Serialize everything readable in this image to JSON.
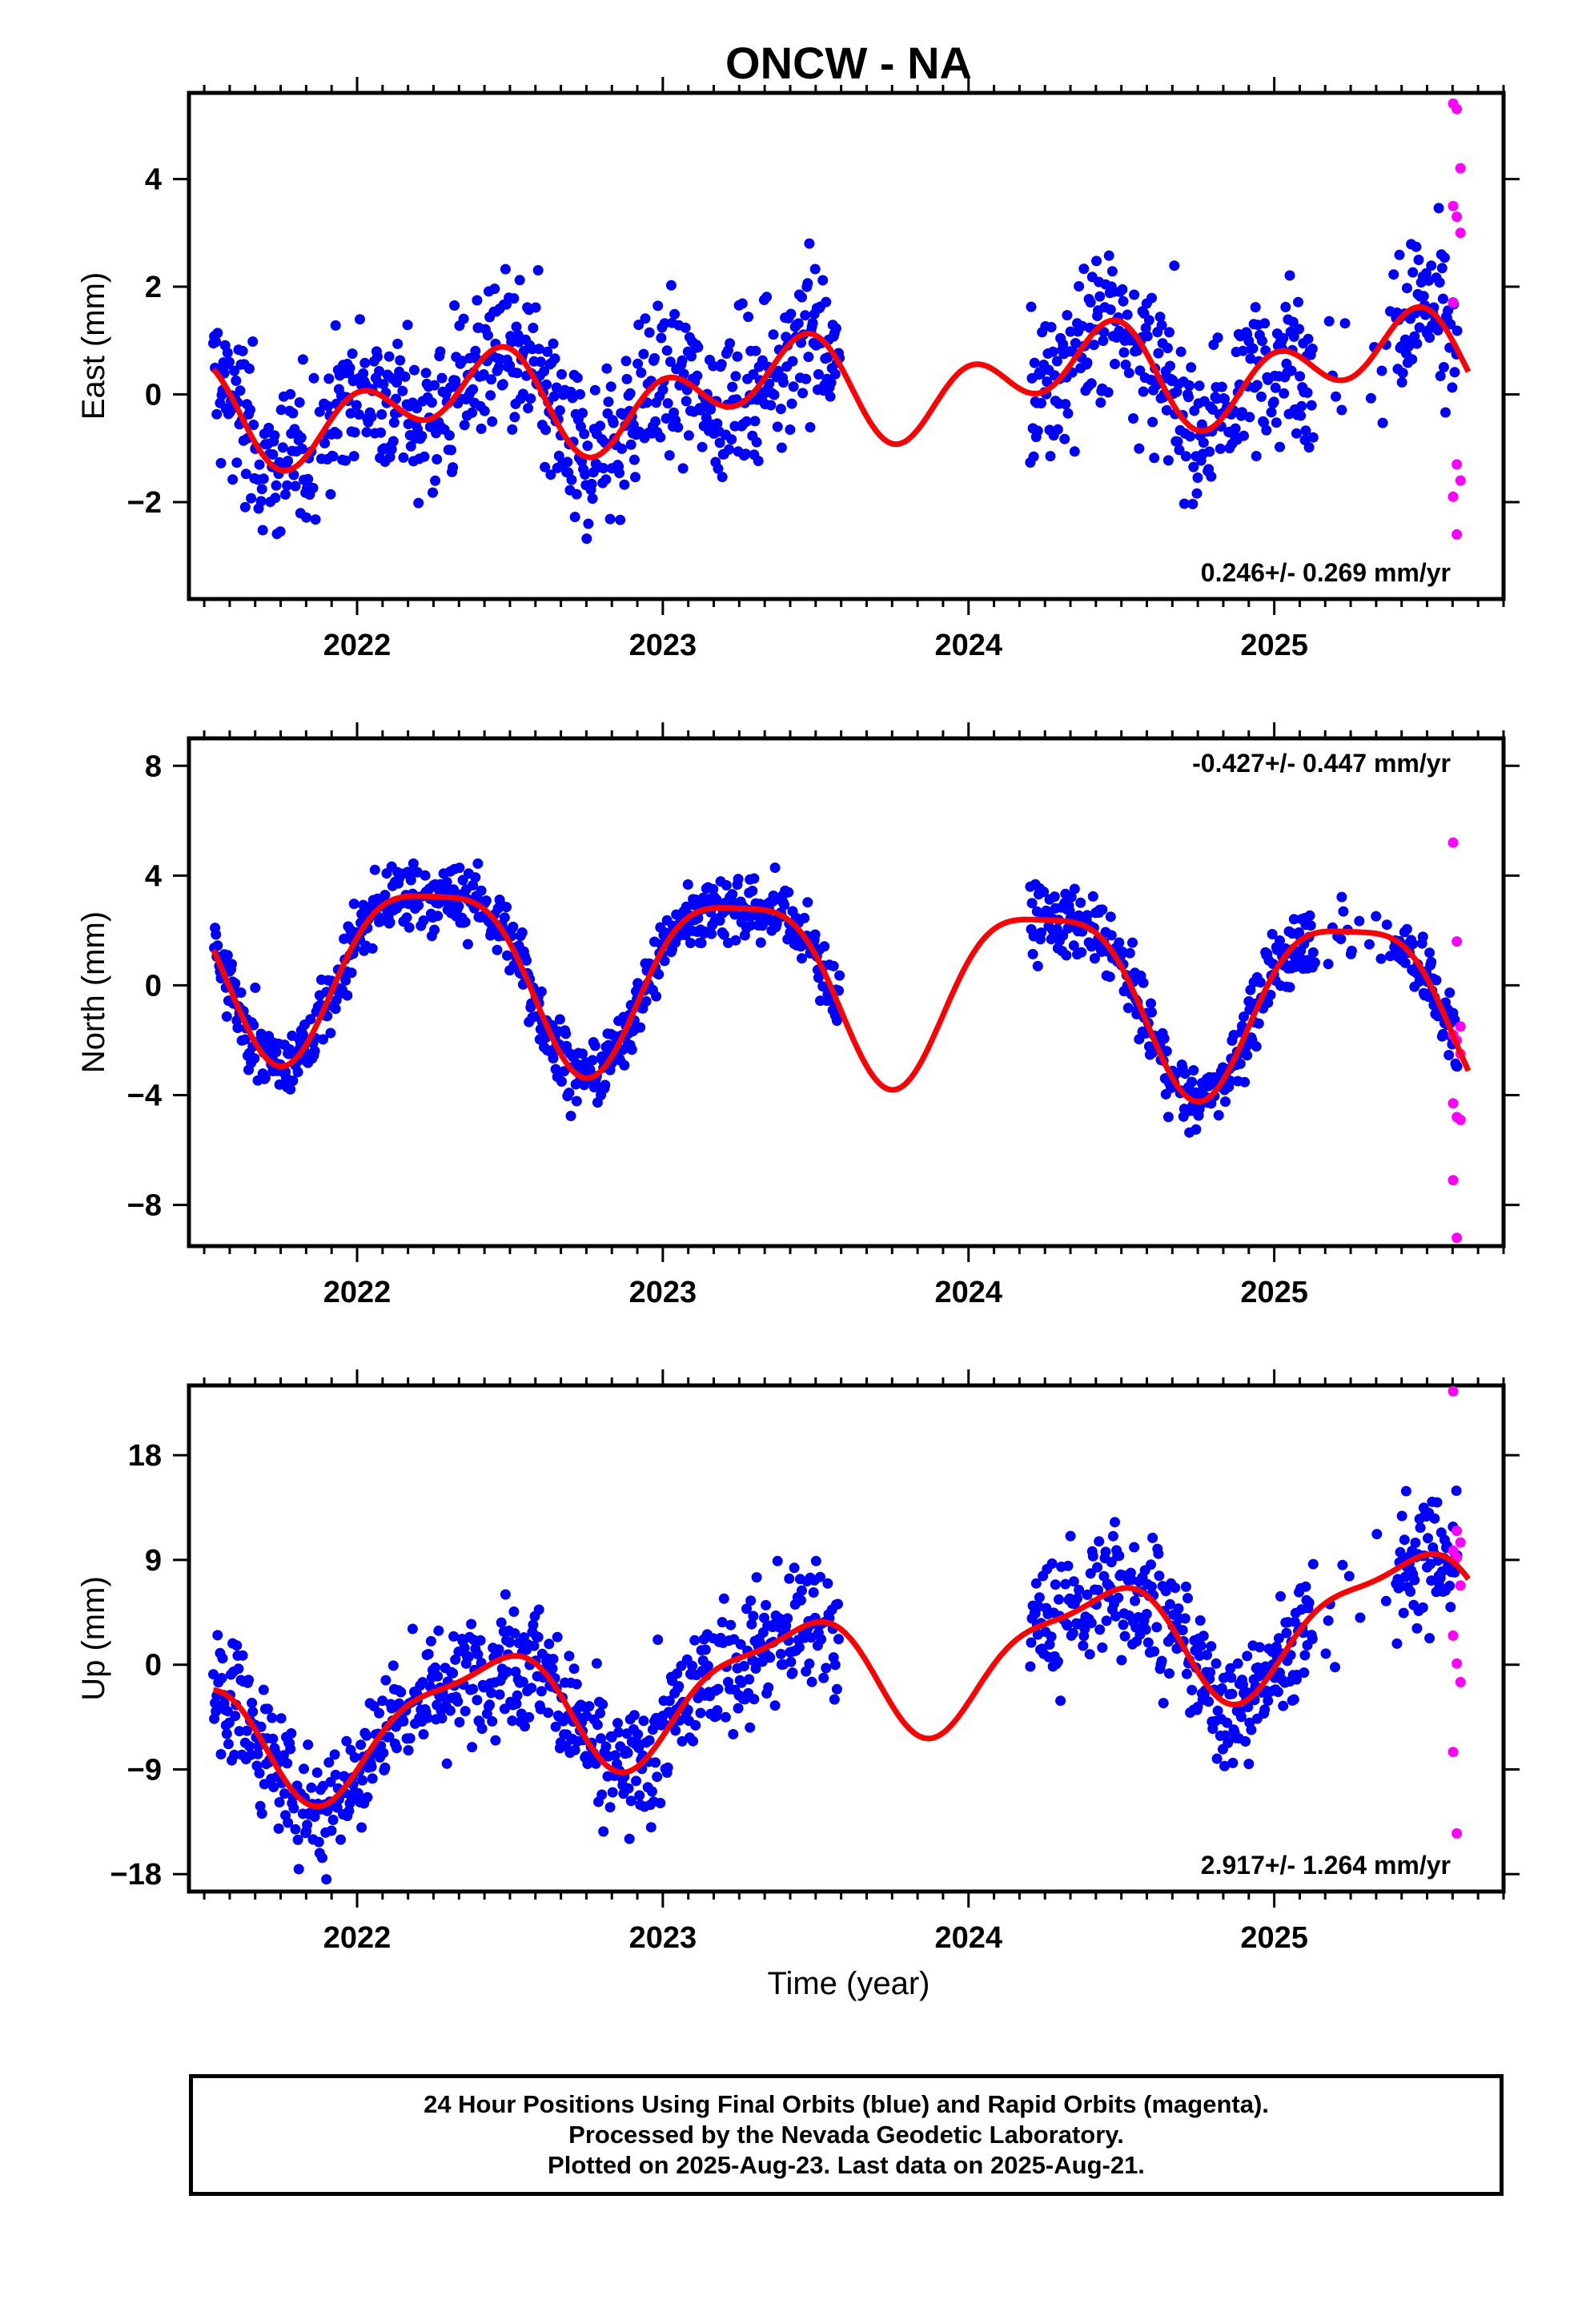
{
  "colors": {
    "final": "#0000ff",
    "rapid": "#ff00ff",
    "fit": "#ff0000",
    "axis": "#000000"
  },
  "chart_data": {
    "type": "scatter",
    "title": "ONCW - NA",
    "xlabel": "Time (year)",
    "xlim": [
      2021.45,
      2025.75
    ],
    "x_ticks": [
      2022,
      2023,
      2024,
      2025
    ],
    "gap": [
      2023.58,
      2024.2
    ],
    "panels": [
      {
        "key": "east",
        "ylabel": "East (mm)",
        "ylim": [
          -3.8,
          5.6
        ],
        "yticks": [
          -2,
          0,
          2,
          4
        ],
        "yticklabels": [
          "−2",
          "0",
          "2",
          "4"
        ],
        "rate": "0.246+/- 0.269 mm/yr",
        "rate_pos": "bottom-right",
        "fit": {
          "offset": 0.1,
          "slope": 0.246,
          "ann_amp": 0.55,
          "ann_phase": 5.6,
          "semi_amp": 0.65,
          "semi_phase": 1.62
        },
        "rapid_values": [
          5.4,
          5.3,
          4.2,
          3.5,
          3.3,
          3.0,
          1.7,
          -1.3,
          -1.6,
          -1.9,
          -2.6
        ],
        "noise": 1.05
      },
      {
        "key": "north",
        "ylabel": "North (mm)",
        "ylim": [
          -9.5,
          9.0
        ],
        "yticks": [
          -8,
          -4,
          0,
          4,
          8
        ],
        "yticklabels": [
          "−8",
          "−4",
          "0",
          "4",
          "8"
        ],
        "rate": "-0.427+/- 0.447 mm/yr",
        "rate_pos": "top-right",
        "fit": {
          "offset": 0.3,
          "slope": -0.427,
          "ann_amp": 3.2,
          "ann_phase": 0.0,
          "semi_amp": 0.8,
          "semi_phase": 1.57
        },
        "rapid_values": [
          5.2,
          1.6,
          -1.5,
          -1.8,
          -2.0,
          -2.5,
          -4.3,
          -4.8,
          -4.9,
          -7.1,
          -9.2
        ],
        "noise": 0.9
      },
      {
        "key": "up",
        "ylabel": "Up (mm)",
        "ylim": [
          -19.5,
          24.0
        ],
        "yticks": [
          -18,
          -9,
          0,
          9,
          18
        ],
        "yticklabels": [
          "−18",
          "−9",
          "0",
          "9",
          "18"
        ],
        "rate": "2.917+/- 1.264 mm/yr",
        "rate_pos": "bottom-right",
        "fit": {
          "offset": -1.0,
          "slope": 2.917,
          "ann_amp": 5.0,
          "ann_phase": 5.3,
          "semi_amp": 1.6,
          "semi_phase": 0.3
        },
        "rapid_values": [
          23.5,
          11.5,
          10.5,
          9.8,
          9.2,
          6.8,
          2.5,
          0.1,
          -1.5,
          -7.5,
          -14.5
        ],
        "noise": 4.0
      }
    ],
    "series": [
      {
        "name": "Final Orbits (blue)",
        "color": "#0000ff"
      },
      {
        "name": "Rapid Orbits (magenta)",
        "color": "#ff00ff"
      }
    ]
  },
  "footer": {
    "line1": "24 Hour Positions Using Final Orbits (blue) and Rapid Orbits (magenta).",
    "line2": "Processed by the Nevada Geodetic Laboratory.",
    "line3": "Plotted on 2025-Aug-23. Last data on 2025-Aug-21."
  }
}
